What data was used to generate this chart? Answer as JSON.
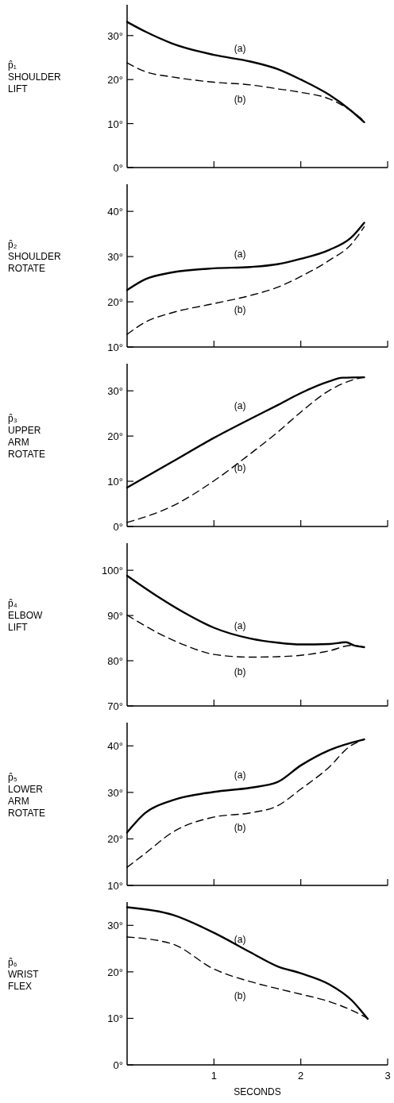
{
  "chart_data": [
    {
      "type": "line",
      "ylabel": "p̂₁ SHOULDER LIFT",
      "xlim": [
        0,
        3
      ],
      "xticks": [
        1,
        2,
        3
      ],
      "ylim": [
        0,
        37
      ],
      "yticks": [
        {
          "value": 0,
          "label": "0°"
        },
        {
          "value": 10,
          "label": "10°"
        },
        {
          "value": 20,
          "label": "20°"
        },
        {
          "value": 30,
          "label": "30°"
        }
      ],
      "tick_labels": "y",
      "series": [
        {
          "name": "(a)",
          "color": "#000000",
          "line_style": "solid",
          "x": [
            0,
            0.21,
            0.52,
            1.0,
            1.42,
            1.73,
            2.0,
            2.33,
            2.58,
            2.73
          ],
          "values": [
            33.1,
            30.9,
            28.2,
            25.6,
            24.1,
            22.4,
            20,
            16.5,
            12.9,
            10.3
          ]
        },
        {
          "name": "(b)",
          "color": "#000000",
          "line_style": "dashed",
          "x": [
            0,
            0.21,
            0.52,
            1.0,
            1.42,
            1.73,
            2.0,
            2.33,
            2.58,
            2.73
          ],
          "values": [
            23.8,
            21.8,
            20.6,
            19.4,
            18.8,
            17.9,
            17.1,
            15.6,
            12.9,
            10.6
          ]
        }
      ]
    },
    {
      "type": "line",
      "ylabel": "p̂₂ SHOULDER ROTATE",
      "xlim": [
        0,
        3
      ],
      "xticks": [
        1,
        2,
        3
      ],
      "ylim": [
        10,
        46
      ],
      "yticks": [
        {
          "value": 10,
          "label": "10°"
        },
        {
          "value": 20,
          "label": "20°"
        },
        {
          "value": 30,
          "label": "30°"
        },
        {
          "value": 40,
          "label": "40°"
        }
      ],
      "tick_labels": "y",
      "series": [
        {
          "name": "(a)",
          "color": "#000000",
          "line_style": "solid",
          "x": [
            0,
            0.21,
            0.52,
            1.0,
            1.42,
            1.73,
            2.0,
            2.33,
            2.58,
            2.73
          ],
          "values": [
            22.6,
            25,
            26.5,
            27.4,
            27.7,
            28.3,
            29.5,
            31.5,
            34.2,
            37.5
          ]
        },
        {
          "name": "(b)",
          "color": "#000000",
          "line_style": "dashed",
          "x": [
            0,
            0.21,
            0.52,
            1.0,
            1.42,
            1.73,
            2.0,
            2.33,
            2.58,
            2.73
          ],
          "values": [
            12.8,
            15.5,
            17.6,
            19.6,
            21.4,
            23.2,
            25.6,
            29.2,
            32.7,
            36.6
          ]
        }
      ]
    },
    {
      "type": "line",
      "ylabel": "p̂₃ UPPER ARM ROTATE",
      "xlim": [
        0,
        3
      ],
      "xticks": [
        1,
        2,
        3
      ],
      "ylim": [
        0,
        36
      ],
      "yticks": [
        {
          "value": 0,
          "label": "0°"
        },
        {
          "value": 10,
          "label": "10°"
        },
        {
          "value": 20,
          "label": "20°"
        },
        {
          "value": 30,
          "label": "30°"
        }
      ],
      "tick_labels": "y",
      "series": [
        {
          "name": "(a)",
          "color": "#000000",
          "line_style": "solid",
          "x": [
            0,
            0.52,
            1.0,
            1.42,
            1.73,
            2.0,
            2.33,
            2.48,
            2.73
          ],
          "values": [
            8.6,
            14.3,
            19.6,
            23.8,
            26.8,
            29.5,
            32.1,
            32.9,
            33.0
          ]
        },
        {
          "name": "(b)",
          "color": "#000000",
          "line_style": "dashed",
          "x": [
            0,
            0.52,
            1.0,
            1.42,
            1.73,
            2.0,
            2.33,
            2.58,
            2.73
          ],
          "values": [
            0.9,
            4.5,
            10.1,
            16.1,
            20.8,
            25.3,
            30.1,
            32.3,
            33.0
          ]
        }
      ]
    },
    {
      "type": "line",
      "ylabel": "p̂₄ ELBOW LIFT",
      "xlim": [
        0,
        3
      ],
      "xticks": [
        1,
        2,
        3
      ],
      "ylim": [
        70,
        106
      ],
      "yticks": [
        {
          "value": 70,
          "label": "70°"
        },
        {
          "value": 80,
          "label": "80°"
        },
        {
          "value": 90,
          "label": "90°"
        },
        {
          "value": 100,
          "label": "100°"
        }
      ],
      "tick_labels": "y",
      "series": [
        {
          "name": "(a)",
          "color": "#000000",
          "line_style": "solid",
          "x": [
            0,
            0.36,
            0.67,
            1.0,
            1.42,
            1.73,
            2.0,
            2.33,
            2.52,
            2.61,
            2.73
          ],
          "values": [
            98.8,
            94.1,
            90.5,
            87.3,
            84.9,
            84.0,
            83.6,
            83.7,
            84.1,
            83.4,
            83.0
          ]
        },
        {
          "name": "(b)",
          "color": "#000000",
          "line_style": "dashed",
          "x": [
            0,
            0.36,
            0.67,
            1.0,
            1.42,
            1.73,
            2.0,
            2.33,
            2.58,
            2.73
          ],
          "values": [
            90.1,
            86.1,
            83.4,
            81.4,
            80.8,
            80.9,
            81.2,
            82.2,
            83.4,
            83.0
          ]
        }
      ]
    },
    {
      "type": "line",
      "ylabel": "p̂₅ LOWER ARM ROTATE",
      "xlim": [
        0,
        3
      ],
      "xticks": [
        1,
        2,
        3
      ],
      "ylim": [
        10,
        45
      ],
      "yticks": [
        {
          "value": 10,
          "label": "10°"
        },
        {
          "value": 20,
          "label": "20°"
        },
        {
          "value": 30,
          "label": "30°"
        },
        {
          "value": 40,
          "label": "40°"
        }
      ],
      "tick_labels": "y",
      "series": [
        {
          "name": "(a)",
          "color": "#000000",
          "line_style": "solid",
          "x": [
            0,
            0.21,
            0.52,
            1.0,
            1.42,
            1.73,
            2.0,
            2.33,
            2.73
          ],
          "values": [
            21.4,
            25.6,
            28.3,
            30.1,
            31,
            32.2,
            35.8,
            39.1,
            41.4
          ]
        },
        {
          "name": "(b)",
          "color": "#000000",
          "line_style": "dashed",
          "x": [
            0,
            0.21,
            0.52,
            1.0,
            1.42,
            1.73,
            2.0,
            2.33,
            2.55,
            2.73
          ],
          "values": [
            13.9,
            16.9,
            21.4,
            24.7,
            25.6,
            27.1,
            30.7,
            35.5,
            39.7,
            41.4
          ]
        }
      ]
    },
    {
      "type": "line",
      "ylabel": "p̂₆ WRIST FLEX",
      "xlabel": "SECONDS",
      "xlim": [
        0,
        3
      ],
      "xticks": [
        1,
        2,
        3
      ],
      "ylim": [
        0,
        35
      ],
      "yticks": [
        {
          "value": 0,
          "label": "0°"
        },
        {
          "value": 10,
          "label": "10°"
        },
        {
          "value": 20,
          "label": "20°"
        },
        {
          "value": 30,
          "label": "30°"
        }
      ],
      "series": [
        {
          "name": "(a)",
          "color": "#000000",
          "line_style": "solid",
          "x": [
            0,
            0.52,
            1.0,
            1.42,
            1.73,
            2.0,
            2.33,
            2.58,
            2.77
          ],
          "values": [
            33.9,
            32.3,
            28.4,
            24.2,
            21.2,
            19.7,
            17.3,
            14,
            9.9
          ]
        },
        {
          "name": "(b)",
          "color": "#000000",
          "line_style": "dashed",
          "x": [
            0,
            0.52,
            1.0,
            1.42,
            1.73,
            2.0,
            2.33,
            2.58,
            2.77
          ],
          "values": [
            27.5,
            26,
            20.6,
            17.9,
            16.4,
            15.2,
            13.6,
            11.8,
            10.0
          ]
        }
      ]
    }
  ]
}
